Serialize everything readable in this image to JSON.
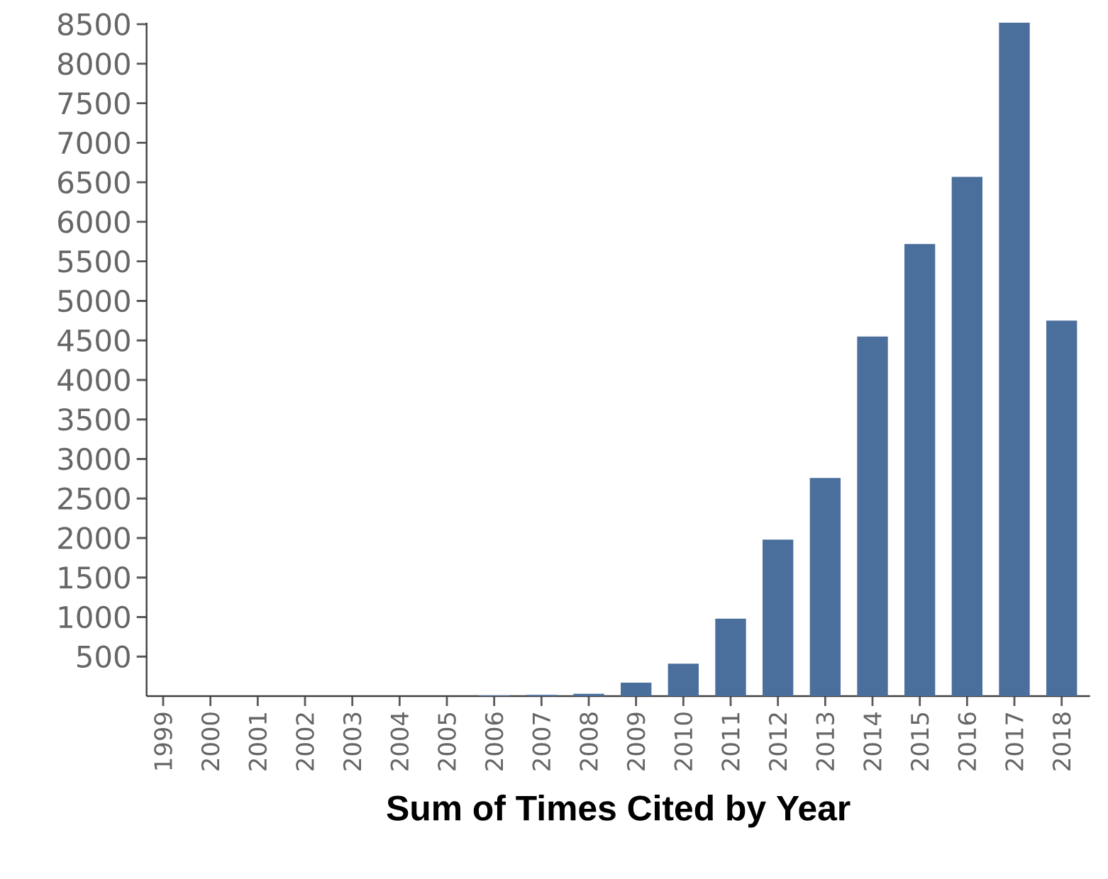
{
  "chart_data": {
    "type": "bar",
    "title": "Sum of Times Cited by Year",
    "categories": [
      "1999",
      "2000",
      "2001",
      "2002",
      "2003",
      "2004",
      "2005",
      "2006",
      "2007",
      "2008",
      "2009",
      "2010",
      "2011",
      "2012",
      "2013",
      "2014",
      "2015",
      "2016",
      "2017",
      "2018"
    ],
    "values": [
      0,
      0,
      0,
      0,
      0,
      0,
      0,
      10,
      15,
      30,
      170,
      410,
      980,
      1980,
      2760,
      4550,
      5720,
      6570,
      8520,
      4750
    ],
    "color": "#4a6f9c",
    "ylim": [
      0,
      8520
    ],
    "yticks": [
      500,
      1000,
      1500,
      2000,
      2500,
      3000,
      3500,
      4000,
      4500,
      5000,
      5500,
      6000,
      6500,
      7000,
      7500,
      8000,
      8500
    ],
    "grid": false
  }
}
